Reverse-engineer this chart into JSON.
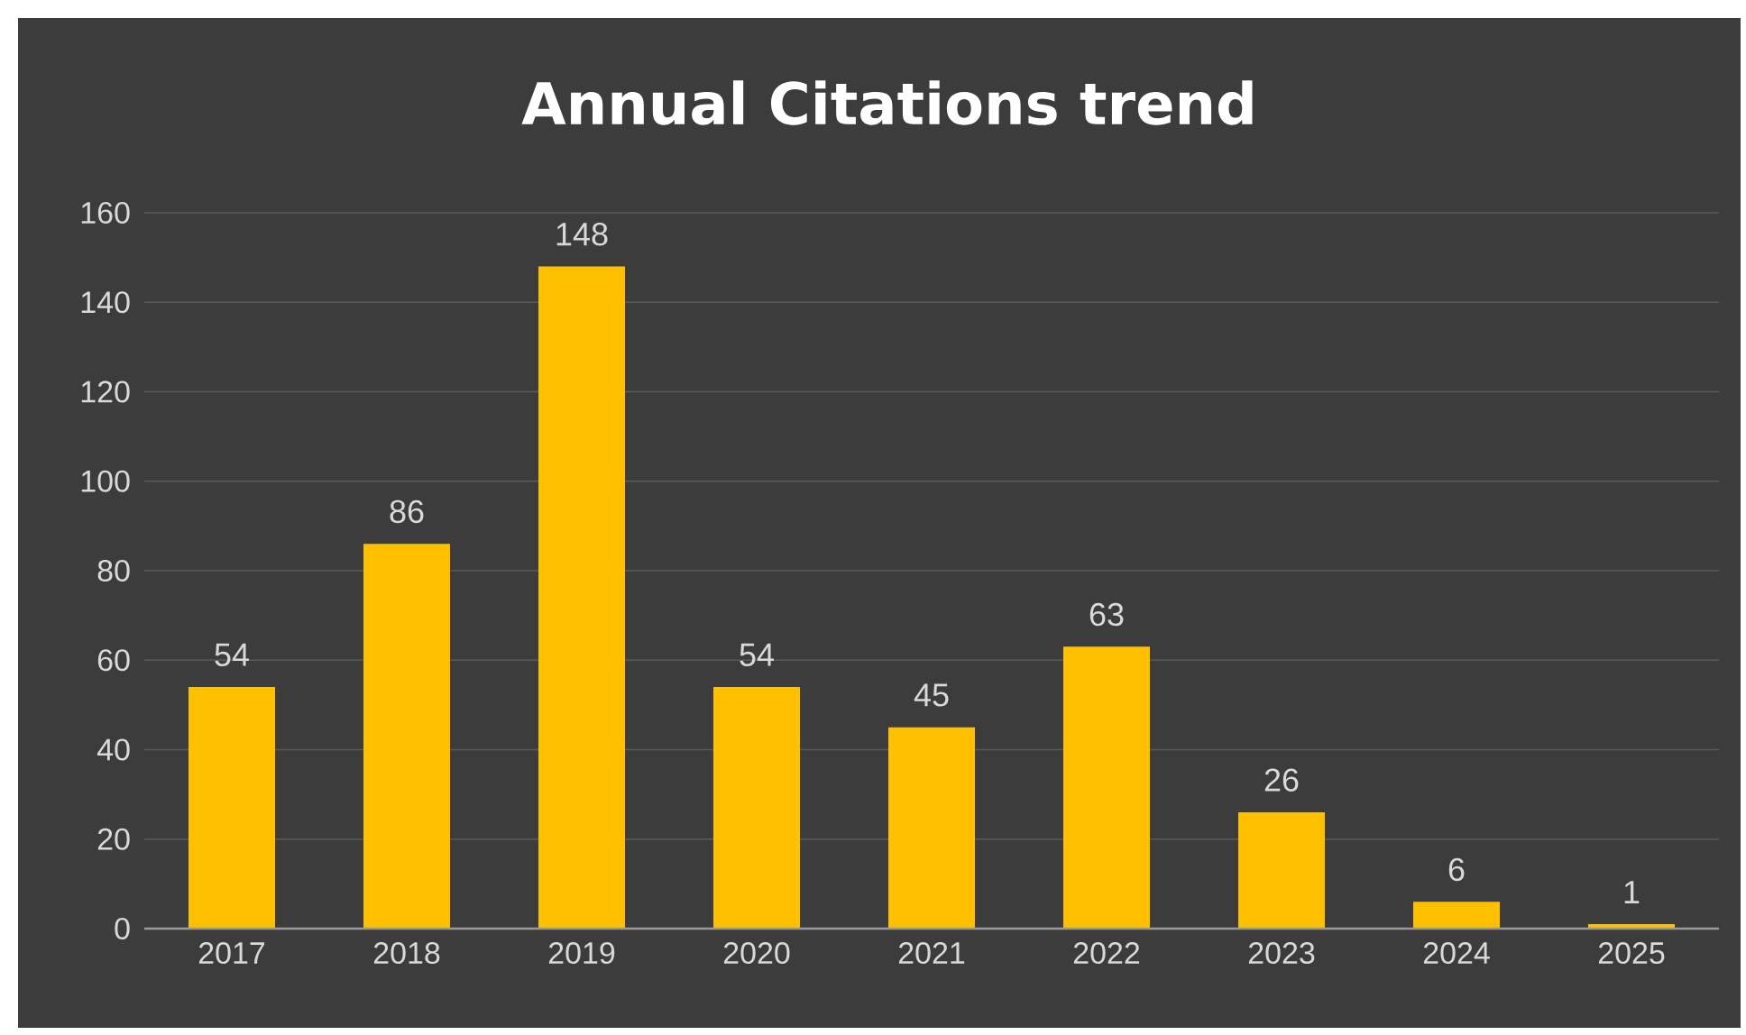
{
  "chart_data": {
    "type": "bar",
    "title": "Annual Citations  trend",
    "categories": [
      "2017",
      "2018",
      "2019",
      "2020",
      "2021",
      "2022",
      "2023",
      "2024",
      "2025"
    ],
    "values": [
      54,
      86,
      148,
      54,
      45,
      63,
      26,
      6,
      1
    ],
    "color": "#ffc000",
    "ylim": [
      0,
      160
    ],
    "yticks": [
      0,
      20,
      40,
      60,
      80,
      100,
      120,
      140,
      160
    ],
    "grid": "y",
    "data_labels": true
  }
}
